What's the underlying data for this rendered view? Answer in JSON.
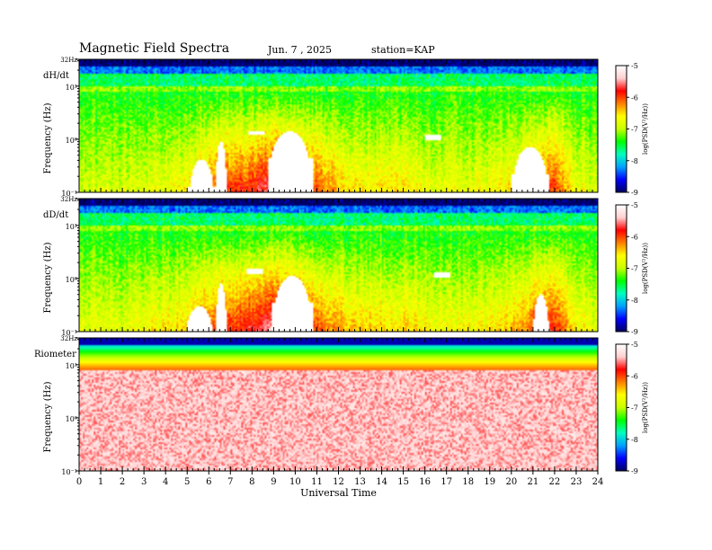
{
  "header": {
    "title": "Magnetic  Field  Spectra",
    "date": "Jun.  7  , 2025",
    "station": "station=KAP"
  },
  "colors": {
    "scale": [
      "#000060",
      "#0000ff",
      "#00a0ff",
      "#00ffc0",
      "#00ff00",
      "#c8ff00",
      "#ffff00",
      "#ff8000",
      "#ff0000",
      "#ffd0d0",
      "#ffffff"
    ]
  },
  "chart_data": [
    {
      "type": "heatmap",
      "panel_label": "dH/dt",
      "xlabel": "",
      "ylabel": "Frequency  (Hz)",
      "xlim": [
        0,
        24
      ],
      "ylim": [
        0.1,
        32
      ],
      "y_scale": "log",
      "y_tick_labels": [
        "32Hz",
        "10¹",
        "10⁰",
        "10⁻¹"
      ],
      "colorbar": {
        "label": "log(PSD(V²/Hz))",
        "range": [
          -9,
          -5
        ],
        "tick_labels": [
          "-5",
          "-6",
          "-7",
          "-8",
          "-9"
        ]
      },
      "features": {
        "low_band": [
          -6.9,
          -6.9,
          -6.9,
          -6.8,
          -6.7,
          -6.6,
          -6.2,
          -6.0,
          -5.9,
          -5.6,
          -5.8,
          -6.1,
          -6.4,
          -6.6,
          -6.6,
          -6.6,
          -6.7,
          -6.8,
          -6.8,
          -6.7,
          -6.6,
          -6.2,
          -6.0,
          -6.7,
          -6.9
        ],
        "quiet_patches": [
          {
            "from": 5.0,
            "to": 6.3,
            "f_top": 0.4
          },
          {
            "from": 6.3,
            "to": 6.8,
            "f_top": 0.9
          },
          {
            "from": 8.7,
            "to": 10.8,
            "f_top": 1.4
          },
          {
            "from": 20.0,
            "to": 21.8,
            "f_top": 0.7
          }
        ],
        "blobs": [
          {
            "t": 8.2,
            "f": 1.3
          },
          {
            "t": 16.4,
            "f": 1.1
          }
        ]
      }
    },
    {
      "type": "heatmap",
      "panel_label": "dD/dt",
      "xlabel": "",
      "ylabel": "Frequency  (Hz)",
      "xlim": [
        0,
        24
      ],
      "ylim": [
        0.1,
        32
      ],
      "y_scale": "log",
      "y_tick_labels": [
        "32Hz",
        "10¹",
        "10⁰",
        "10⁻¹"
      ],
      "colorbar": {
        "label": "log(PSD(V²/Hz))",
        "range": [
          -9,
          -5
        ],
        "tick_labels": [
          "-5",
          "-6",
          "-7",
          "-8",
          "-9"
        ]
      },
      "features": {
        "low_band": [
          -6.8,
          -6.8,
          -6.8,
          -6.7,
          -6.6,
          -6.5,
          -6.1,
          -5.9,
          -5.8,
          -5.5,
          -5.7,
          -6.0,
          -6.3,
          -6.5,
          -6.5,
          -6.5,
          -6.6,
          -6.7,
          -6.7,
          -6.6,
          -6.5,
          -6.1,
          -5.9,
          -6.6,
          -6.8
        ],
        "quiet_patches": [
          {
            "from": 4.8,
            "to": 6.3,
            "f_top": 0.3
          },
          {
            "from": 6.3,
            "to": 6.8,
            "f_top": 0.8
          },
          {
            "from": 8.9,
            "to": 10.8,
            "f_top": 1.1
          },
          {
            "from": 21.0,
            "to": 21.8,
            "f_top": 0.5
          }
        ],
        "blobs": [
          {
            "t": 8.1,
            "f": 1.4
          },
          {
            "t": 16.8,
            "f": 1.2
          }
        ]
      }
    },
    {
      "type": "heatmap",
      "panel_label": "Riometer",
      "xlabel": "Universal Time",
      "ylabel": "Frequency  (Hz)",
      "xlim": [
        0,
        24
      ],
      "ylim": [
        0.1,
        32
      ],
      "y_scale": "log",
      "x_tick_labels": [
        "0",
        "1",
        "2",
        "3",
        "4",
        "5",
        "6",
        "7",
        "8",
        "9",
        "10",
        "11",
        "12",
        "13",
        "14",
        "15",
        "16",
        "17",
        "18",
        "19",
        "20",
        "21",
        "22",
        "23",
        "24"
      ],
      "y_tick_labels": [
        "32Hz",
        "10¹",
        "10⁰",
        "10⁻¹"
      ],
      "colorbar": {
        "label": "log(PSD(V²/Hz))",
        "range": [
          -9,
          -5
        ],
        "tick_labels": [
          "-5",
          "-6",
          "-7",
          "-8",
          "-9"
        ]
      },
      "features": {
        "low_band": [
          -5.3,
          -5.3,
          -5.3,
          -5.3,
          -5.3,
          -5.3,
          -5.3,
          -5.3,
          -5.3,
          -5.3,
          -5.3,
          -5.3,
          -5.3,
          -5.3,
          -5.3,
          -5.3,
          -5.3,
          -5.3,
          -5.3,
          -5.3,
          -5.3,
          -5.3,
          -5.3,
          -5.3,
          -5.3
        ],
        "quiet_patches": [],
        "blobs": []
      }
    }
  ]
}
